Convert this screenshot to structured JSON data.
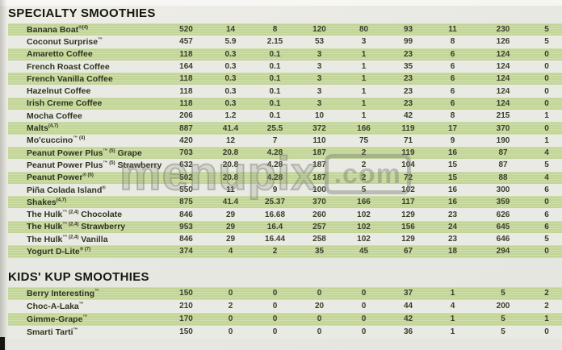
{
  "colors": {
    "row_green": "#c5d79d",
    "row_light": "#e9eae3",
    "background": "#e8e8e2",
    "title_text": "#16180e",
    "watermark_gray": "#7a7a74"
  },
  "watermark": {
    "text": "menupix",
    "suffix": ".com"
  },
  "sections": [
    {
      "title": "SPECIALTY SMOOTHIES",
      "rows": [
        {
          "name": "Banana Boat",
          "sup": "®(4)",
          "suffix": "",
          "values": [
            "520",
            "14",
            "8",
            "120",
            "80",
            "93",
            "11",
            "230",
            "5"
          ]
        },
        {
          "name": "Coconut Surprise",
          "sup": "™",
          "suffix": "",
          "values": [
            "457",
            "5.9",
            "2.15",
            "53",
            "3",
            "99",
            "8",
            "126",
            "5"
          ]
        },
        {
          "name": "Amaretto Coffee",
          "sup": "",
          "suffix": "",
          "values": [
            "118",
            "0.3",
            "0.1",
            "3",
            "1",
            "23",
            "6",
            "124",
            "0"
          ]
        },
        {
          "name": "French Roast Coffee",
          "sup": "",
          "suffix": "",
          "values": [
            "164",
            "0.3",
            "0.1",
            "3",
            "1",
            "35",
            "6",
            "124",
            "0"
          ]
        },
        {
          "name": "French Vanilla Coffee",
          "sup": "",
          "suffix": "",
          "values": [
            "118",
            "0.3",
            "0.1",
            "3",
            "1",
            "23",
            "6",
            "124",
            "0"
          ]
        },
        {
          "name": "Hazelnut Coffee",
          "sup": "",
          "suffix": "",
          "values": [
            "118",
            "0.3",
            "0.1",
            "3",
            "1",
            "23",
            "6",
            "124",
            "0"
          ]
        },
        {
          "name": "Irish Creme Coffee",
          "sup": "",
          "suffix": "",
          "values": [
            "118",
            "0.3",
            "0.1",
            "3",
            "1",
            "23",
            "6",
            "124",
            "0"
          ]
        },
        {
          "name": "Mocha Coffee",
          "sup": "",
          "suffix": "",
          "values": [
            "206",
            "1.2",
            "0.1",
            "10",
            "1",
            "42",
            "8",
            "215",
            "1"
          ]
        },
        {
          "name": "Malts",
          "sup": "(4,7)",
          "suffix": "",
          "values": [
            "887",
            "41.4",
            "25.5",
            "372",
            "166",
            "119",
            "17",
            "370",
            "0"
          ]
        },
        {
          "name": "Mo'cuccino",
          "sup": "™ (4)",
          "suffix": "",
          "values": [
            "420",
            "12",
            "7",
            "110",
            "75",
            "71",
            "9",
            "190",
            "1"
          ]
        },
        {
          "name": "Peanut Power Plus",
          "sup": "™ (5)",
          "suffix": "Grape",
          "values": [
            "703",
            "20.8",
            "4.28",
            "187",
            "2",
            "119",
            "16",
            "87",
            "4"
          ]
        },
        {
          "name": "Peanut Power Plus",
          "sup": "™ (5)",
          "suffix": "Strawberry",
          "values": [
            "632",
            "20.8",
            "4.28",
            "187",
            "2",
            "104",
            "15",
            "87",
            "5"
          ]
        },
        {
          "name": "Peanut Power",
          "sup": "® (5)",
          "suffix": "",
          "values": [
            "502",
            "20.8",
            "4.28",
            "187",
            "2",
            "72",
            "15",
            "88",
            "4"
          ]
        },
        {
          "name": "Piña Colada Island",
          "sup": "®",
          "suffix": "",
          "values": [
            "550",
            "11",
            "9",
            "100",
            "5",
            "102",
            "16",
            "300",
            "6"
          ]
        },
        {
          "name": "Shakes",
          "sup": "(4,7)",
          "suffix": "",
          "values": [
            "875",
            "41.4",
            "25.37",
            "370",
            "166",
            "117",
            "16",
            "359",
            "0"
          ]
        },
        {
          "name": "The Hulk",
          "sup": "™ (2,4)",
          "suffix": "Chocolate",
          "values": [
            "846",
            "29",
            "16.68",
            "260",
            "102",
            "129",
            "23",
            "626",
            "6"
          ]
        },
        {
          "name": "The Hulk",
          "sup": "™ (2,4)",
          "suffix": "Strawberry",
          "values": [
            "953",
            "29",
            "16.4",
            "257",
            "102",
            "156",
            "24",
            "645",
            "6"
          ]
        },
        {
          "name": "The Hulk",
          "sup": "™ (2,4)",
          "suffix": "Vanilla",
          "values": [
            "846",
            "29",
            "16.44",
            "258",
            "102",
            "129",
            "23",
            "646",
            "5"
          ]
        },
        {
          "name": "Yogurt D-Lite",
          "sup": "® (7)",
          "suffix": "",
          "values": [
            "374",
            "4",
            "2",
            "35",
            "45",
            "67",
            "18",
            "294",
            "0"
          ]
        }
      ]
    },
    {
      "title": "KIDS' KUP SMOOTHIES",
      "rows": [
        {
          "name": "Berry Interesting",
          "sup": "™",
          "suffix": "",
          "values": [
            "150",
            "0",
            "0",
            "0",
            "0",
            "37",
            "1",
            "5",
            "2"
          ]
        },
        {
          "name": "Choc-A-Laka",
          "sup": "™",
          "suffix": "",
          "values": [
            "210",
            "2",
            "0",
            "20",
            "0",
            "44",
            "4",
            "200",
            "2"
          ]
        },
        {
          "name": "Gimme-Grape",
          "sup": "™",
          "suffix": "",
          "values": [
            "170",
            "0",
            "0",
            "0",
            "0",
            "42",
            "1",
            "5",
            "1"
          ]
        },
        {
          "name": "Smarti Tarti",
          "sup": "™",
          "suffix": "",
          "values": [
            "150",
            "0",
            "0",
            "0",
            "0",
            "36",
            "1",
            "5",
            "0"
          ]
        }
      ]
    }
  ]
}
